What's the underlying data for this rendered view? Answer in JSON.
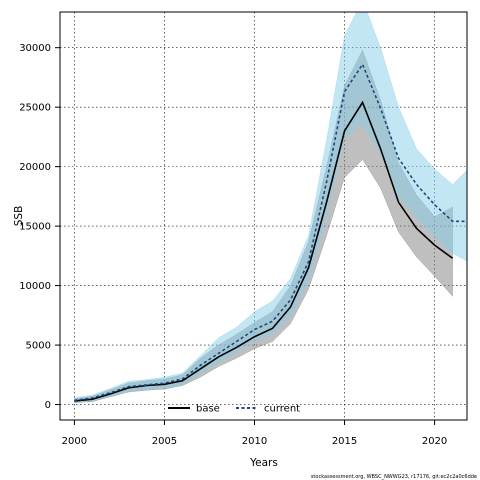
{
  "chart_data": {
    "type": "line",
    "xlabel": "Years",
    "ylabel": "SSB",
    "xlim": [
      1999.2,
      2021.8
    ],
    "ylim": [
      -1300,
      33000
    ],
    "x_ticks": [
      2000,
      2005,
      2010,
      2015,
      2020
    ],
    "y_ticks": [
      0,
      5000,
      10000,
      15000,
      20000,
      25000,
      30000
    ],
    "grid": true,
    "legend": {
      "position": "bottom-center"
    },
    "series": [
      {
        "name": "base",
        "color": "#000000",
        "line_style": "solid",
        "band_color": "#808080",
        "x": [
          2000,
          2001,
          2002,
          2003,
          2004,
          2005,
          2006,
          2007,
          2008,
          2009,
          2010,
          2011,
          2012,
          2013,
          2014,
          2015,
          2016,
          2017,
          2018,
          2019,
          2020,
          2021
        ],
        "values": [
          300,
          450,
          900,
          1400,
          1600,
          1700,
          2000,
          3000,
          4000,
          4800,
          5700,
          6400,
          8200,
          11500,
          17000,
          23000,
          25400,
          21500,
          17000,
          14800,
          13400,
          12300
        ],
        "lower": [
          150,
          250,
          650,
          1050,
          1200,
          1300,
          1600,
          2300,
          3200,
          3900,
          4700,
          5300,
          6800,
          9700,
          14200,
          19100,
          20600,
          18200,
          14500,
          12400,
          10800,
          9100
        ],
        "upper": [
          500,
          700,
          1250,
          1800,
          2000,
          2150,
          2500,
          3900,
          5000,
          5900,
          6900,
          7800,
          10000,
          13700,
          20000,
          26800,
          29800,
          25600,
          20300,
          17600,
          15800,
          16600
        ]
      },
      {
        "name": "current",
        "color": "#1a4a7a",
        "line_style": "dashed",
        "band_color": "#87ceeb",
        "x": [
          2000,
          2001,
          2002,
          2003,
          2004,
          2005,
          2006,
          2007,
          2008,
          2009,
          2010,
          2011,
          2012,
          2013,
          2014,
          2015,
          2016,
          2017,
          2018,
          2019,
          2020,
          2021,
          2022
        ],
        "values": [
          350,
          550,
          1000,
          1500,
          1650,
          1800,
          2150,
          3300,
          4300,
          5300,
          6300,
          7000,
          8800,
          12000,
          18700,
          26300,
          28600,
          24900,
          20700,
          18500,
          16800,
          15400,
          15400
        ],
        "lower": [
          200,
          350,
          700,
          1100,
          1250,
          1350,
          1700,
          2600,
          3500,
          4400,
          5300,
          5900,
          7400,
          10300,
          15800,
          22400,
          23600,
          21100,
          17500,
          15700,
          14100,
          12700,
          11900
        ],
        "upper": [
          550,
          800,
          1350,
          1950,
          2100,
          2300,
          2650,
          4100,
          5600,
          6500,
          7800,
          8700,
          10600,
          14200,
          22200,
          31000,
          34000,
          30000,
          25000,
          21500,
          19800,
          18500,
          20000
        ]
      }
    ]
  },
  "footnote": "stockassessment.org, WBSC_NWWG23, r17176, git:ec2c2a0c6dde"
}
